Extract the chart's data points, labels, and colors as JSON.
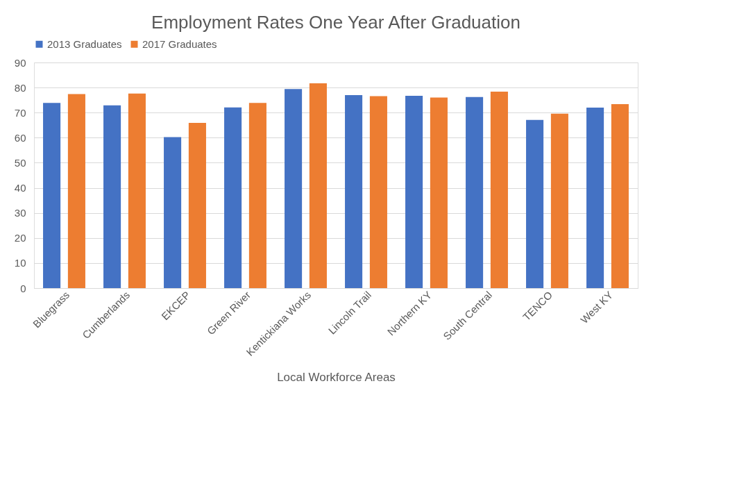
{
  "chart_data": {
    "type": "bar",
    "title": "Employment Rates One Year After Graduation",
    "xlabel": "Local Workforce Areas",
    "categories": [
      "Bluegrass",
      "Cumberlands",
      "EKCEP",
      "Green River",
      "Kentickiana Works",
      "Lincoln Trail",
      "Northern KY",
      "South Central",
      "TENCO",
      "West KY"
    ],
    "series": [
      {
        "name": "2013 Graduates",
        "color": "#4472c4",
        "values": [
          73.9,
          72.9,
          60.2,
          72.1,
          79.4,
          77.0,
          76.7,
          76.2,
          67.1,
          72.0
        ]
      },
      {
        "name": "2017 Graduates",
        "color": "#ed7d31",
        "values": [
          77.4,
          77.6,
          65.9,
          73.9,
          81.7,
          76.6,
          76.0,
          78.4,
          69.6,
          73.4
        ]
      }
    ],
    "ylim": [
      0,
      90
    ],
    "yticks": [
      0,
      10,
      20,
      30,
      40,
      50,
      60,
      70,
      80,
      90
    ],
    "grid": "y",
    "legend": "top"
  }
}
